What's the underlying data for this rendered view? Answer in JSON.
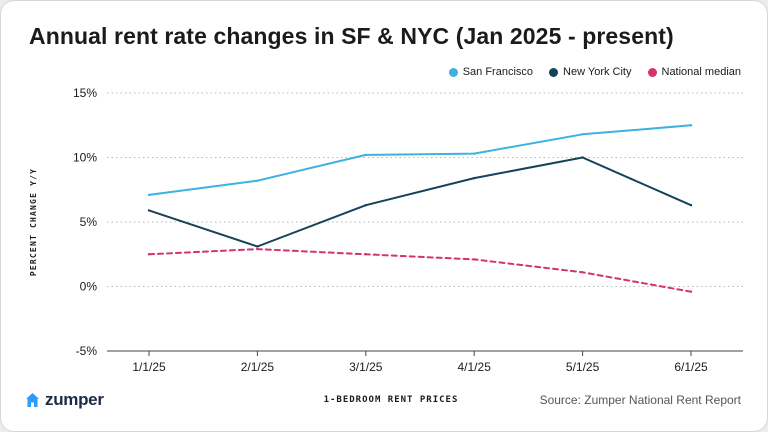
{
  "title": "Annual rent rate changes in SF & NYC (Jan 2025 - present)",
  "source": "Source: Zumper National Rent Report",
  "brand": {
    "name": "zumper",
    "icon": "house-icon",
    "color": "#2e9bff"
  },
  "chart_data": {
    "type": "line",
    "title": "Annual rent rate changes in SF & NYC (Jan 2025 - present)",
    "xlabel": "1-BEDROOM RENT PRICES",
    "ylabel": "PERCENT CHANGE Y/Y",
    "categories": [
      "1/1/25",
      "2/1/25",
      "3/1/25",
      "4/1/25",
      "5/1/25",
      "6/1/25"
    ],
    "yticks": [
      "15%",
      "10%",
      "5%",
      "0%",
      "-5%"
    ],
    "ylim": [
      -5,
      15
    ],
    "grid": true,
    "legend_position": "top-right",
    "series": [
      {
        "name": "San Francisco",
        "color": "#3eb1e3",
        "dashed": false,
        "values": [
          7.1,
          8.2,
          10.2,
          10.3,
          11.8,
          12.5
        ]
      },
      {
        "name": "New York City",
        "color": "#17435a",
        "dashed": false,
        "values": [
          5.9,
          3.1,
          6.3,
          8.4,
          10.0,
          6.3
        ]
      },
      {
        "name": "National median",
        "color": "#d6336c",
        "dashed": true,
        "values": [
          2.5,
          2.9,
          2.5,
          2.1,
          1.1,
          -0.4
        ]
      }
    ]
  }
}
